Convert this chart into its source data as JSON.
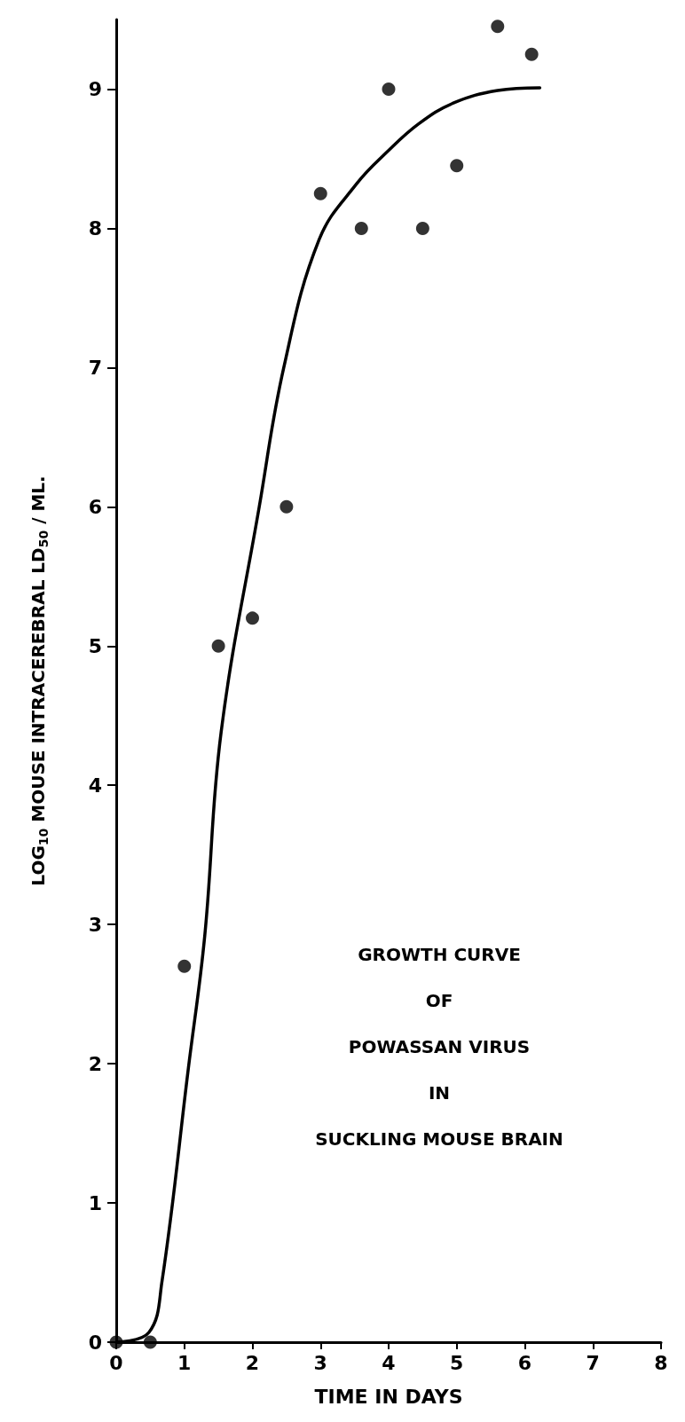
{
  "chart_data": {
    "type": "scatter",
    "xlabel": "TIME IN DAYS",
    "ylabel": "LOG$_{10}$ MOUSE INTRACEREBRAL LD$_{50}$ / ML.",
    "annotations": [
      "GROWTH CURVE\nOF\nPOWASSAN VIRUS\nIN\nSUCKLING MOUSE BRAIN"
    ],
    "xlim": [
      0,
      8
    ],
    "xticks": [
      0,
      1,
      2,
      3,
      4,
      5,
      6,
      7,
      8
    ],
    "ylim": [
      0,
      9.5
    ],
    "yticks": [
      0,
      1,
      2,
      3,
      4,
      5,
      6,
      7,
      8,
      9
    ],
    "grid": false,
    "series": [
      {
        "color": "#000000",
        "marker": "circle",
        "x": [
          0,
          0.5,
          1.0,
          1.5,
          2.0,
          2.5,
          3.0,
          3.6,
          4.0,
          4.5,
          5.0,
          5.6,
          6.1
        ],
        "values": [
          0,
          0,
          2.7,
          5.0,
          5.2,
          6.0,
          8.25,
          8.0,
          9.0,
          8.0,
          8.45,
          9.45,
          9.25
        ]
      },
      {
        "type": "line",
        "color": "#000000",
        "marker": "none",
        "line_style": "solid",
        "x": [
          0,
          0.48,
          0.67,
          1.06,
          1.3,
          1.54,
          2.1,
          2.46,
          2.98,
          3.53,
          3.98,
          4.44,
          4.95,
          5.6,
          6.22
        ],
        "values": [
          0,
          0.07,
          0.43,
          1.97,
          2.92,
          4.38,
          6.0,
          7.0,
          7.92,
          8.32,
          8.55,
          8.75,
          8.9,
          8.99,
          9.01
        ]
      }
    ]
  }
}
